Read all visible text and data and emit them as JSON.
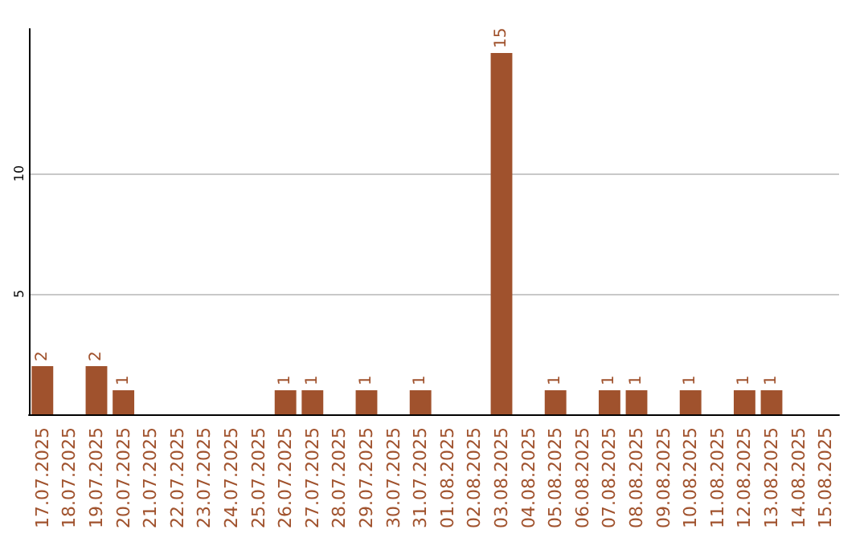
{
  "chart_data": {
    "type": "bar",
    "categories": [
      "17.07.2025",
      "18.07.2025",
      "19.07.2025",
      "20.07.2025",
      "21.07.2025",
      "22.07.2025",
      "23.07.2025",
      "24.07.2025",
      "25.07.2025",
      "26.07.2025",
      "27.07.2025",
      "28.07.2025",
      "29.07.2025",
      "30.07.2025",
      "31.07.2025",
      "01.08.2025",
      "02.08.2025",
      "03.08.2025",
      "04.08.2025",
      "05.08.2025",
      "06.08.2025",
      "07.08.2025",
      "08.08.2025",
      "09.08.2025",
      "10.08.2025",
      "11.08.2025",
      "12.08.2025",
      "13.08.2025",
      "14.08.2025",
      "15.08.2025"
    ],
    "values": [
      2,
      0,
      2,
      1,
      0,
      0,
      0,
      0,
      0,
      1,
      1,
      0,
      1,
      0,
      1,
      0,
      0,
      15,
      0,
      1,
      0,
      1,
      1,
      0,
      1,
      0,
      1,
      1,
      0,
      0
    ],
    "value_labels": [
      "2",
      null,
      "2",
      "1",
      null,
      null,
      null,
      null,
      null,
      "1",
      "1",
      null,
      "1",
      null,
      "1",
      null,
      null,
      "15",
      null,
      "1",
      null,
      "1",
      "1",
      null,
      "1",
      null,
      "1",
      "1",
      null,
      null
    ],
    "color": "#a0522d",
    "ylim": [
      0,
      16
    ],
    "yticks": [
      5,
      10
    ],
    "grid": "y"
  }
}
